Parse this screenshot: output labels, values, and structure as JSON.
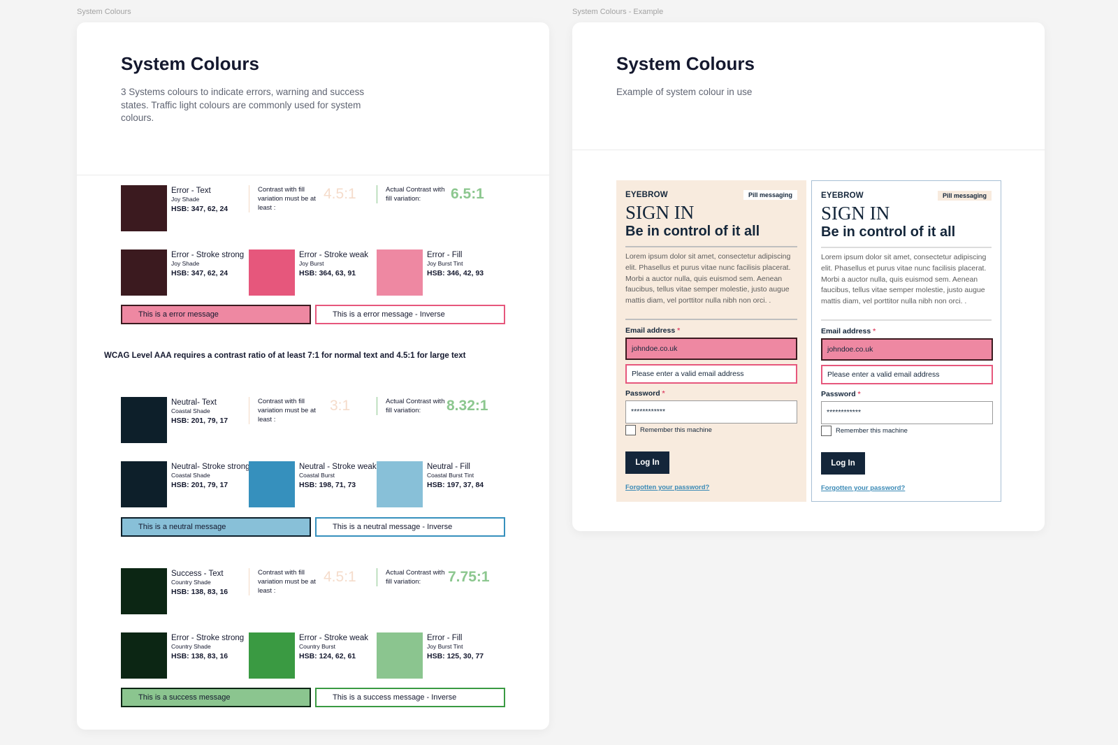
{
  "frames": {
    "left_label": "System Colours",
    "right_label": "System Colours - Example"
  },
  "left": {
    "title": "System Colours",
    "description": "3 Systems colours to indicate errors, warning and success states. Traffic light colours are commonly used for system colours.",
    "contrast_min_text": "Contrast with fill variation must be at least :",
    "contrast_actual_text": "Actual Contrast with fill variation:",
    "error": {
      "text_swatch": {
        "name": "Error - Text",
        "sub": "Joy Shade",
        "hsb": "HSB: 347, 62, 24",
        "color": "#3b1a1f"
      },
      "min_ratio": "4.5:1",
      "actual_ratio": "6.5:1",
      "strong": {
        "name": "Error - Stroke strong",
        "sub": "Joy Shade",
        "hsb": "HSB: 347, 62, 24",
        "color": "#3b1a1f"
      },
      "weak": {
        "name": "Error - Stroke weak",
        "sub": "Joy Burst",
        "hsb": "HSB: 364, 63, 91",
        "color": "#e6577c"
      },
      "fill": {
        "name": "Error - Fill",
        "sub": "Joy Burst Tint",
        "hsb": "HSB: 346, 42, 93",
        "color": "#ee88a2"
      },
      "message": "This is a error message",
      "message_inverse": "This is a error message - Inverse"
    },
    "wcag_note": "WCAG Level AAA requires a contrast ratio of at least 7:1 for normal text and 4.5:1 for large text",
    "neutral": {
      "text_swatch": {
        "name": "Neutral- Text",
        "sub": "Coastal Shade",
        "hsb": "HSB: 201, 79, 17",
        "color": "#0d1f2a"
      },
      "min_ratio": "3:1",
      "actual_ratio": "8.32:1",
      "strong": {
        "name": "Neutral- Stroke strong",
        "sub": "Coastal Shade",
        "hsb": "HSB: 201, 79, 17",
        "color": "#0d1f2a"
      },
      "weak": {
        "name": "Neutral - Stroke weak",
        "sub": "Coastal Burst",
        "hsb": "HSB: 198, 71, 73",
        "color": "#3690bd"
      },
      "fill": {
        "name": "Neutral - Fill",
        "sub": "Coastal Burst Tint",
        "hsb": "HSB: 197, 37, 84",
        "color": "#88c0d8"
      },
      "message": "This is a neutral message",
      "message_inverse": "This is a neutral message - Inverse"
    },
    "success": {
      "text_swatch": {
        "name": "Success - Text",
        "sub": "Country Shade",
        "hsb": "HSB: 138, 83, 16",
        "color": "#0c2614"
      },
      "min_ratio": "4.5:1",
      "actual_ratio": "7.75:1",
      "strong": {
        "name": "Error - Stroke strong",
        "sub": "Country Shade",
        "hsb": "HSB: 138, 83, 16",
        "color": "#0c2614"
      },
      "weak": {
        "name": "Error - Stroke weak",
        "sub": "Country Burst",
        "hsb": "HSB: 124, 62, 61",
        "color": "#3a9a42"
      },
      "fill": {
        "name": "Error - Fill",
        "sub": "Joy Burst Tint",
        "hsb": "HSB: 125, 30, 77",
        "color": "#8bc58f"
      },
      "message": "This is a success message",
      "message_inverse": "This is a success message - Inverse"
    }
  },
  "right": {
    "title": "System Colours",
    "description": "Example of system colour in use",
    "panels": [
      {
        "variant": "filled",
        "eyebrow": "EYEBROW",
        "pill": "Pill messaging",
        "title": "SIGN IN",
        "subtitle": "Be in control of it all",
        "body": "Lorem ipsum dolor sit amet, consectetur adipiscing elit. Phasellus et purus vitae nunc facilisis placerat. Morbi a auctor nulla, quis euismod sem. Aenean faucibus, tellus vitae semper molestie, justo augue mattis diam, vel porttitor nulla nibh non orci. .",
        "email_label": "Email address",
        "email_value": "johndoe.co.uk",
        "email_error": "Please enter a valid email address",
        "password_label": "Password",
        "password_value": "************",
        "remember": "Remember this machine",
        "login": "Log In",
        "forgot": "Forgotten your password?"
      },
      {
        "variant": "outlined",
        "eyebrow": "EYEBROW",
        "pill": "Pill messaging",
        "title": "SIGN IN",
        "subtitle": "Be in control of it all",
        "body": "Lorem ipsum dolor sit amet, consectetur adipiscing elit. Phasellus et purus vitae nunc facilisis placerat. Morbi a auctor nulla, quis euismod sem. Aenean faucibus, tellus vitae semper molestie, justo augue mattis diam, vel porttitor nulla nibh non orci. .",
        "email_label": "Email address",
        "email_value": "johndoe.co.uk",
        "email_error": "Please enter a valid email address",
        "password_label": "Password",
        "password_value": "************",
        "remember": "Remember this machine",
        "login": "Log In",
        "forgot": "Forgotten your password?"
      }
    ]
  }
}
